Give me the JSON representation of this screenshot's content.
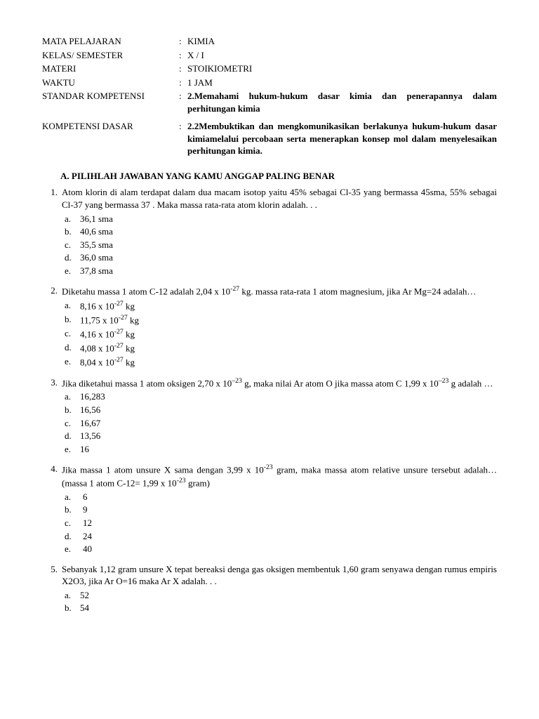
{
  "header": [
    {
      "label": "MATA PELAJARAN",
      "value": "KIMIA",
      "bold": false
    },
    {
      "label": "KELAS/ SEMESTER",
      "value": "X / I",
      "bold": false
    },
    {
      "label": "MATERI",
      "value": "STOIKIOMETRI",
      "bold": false
    },
    {
      "label": "WAKTU",
      "value": "1 JAM",
      "bold": false
    },
    {
      "label": "STANDAR KOMPETENSI",
      "value": "2.Memahami hukum-hukum dasar kimia dan penerapannya dalam perhitungan kimia",
      "bold": true
    },
    {
      "label": "KOMPETENSI DASAR",
      "value": "2.2Membuktikan dan mengkomunikasikan berlakunya hukum-hukum dasar kimiamelalui percobaan serta menerapkan konsep mol dalam menyelesaikan perhitungan kimia.",
      "bold": true
    }
  ],
  "section_title": "A.  PILIHLAH JAWABAN YANG KAMU ANGGAP PALING BENAR",
  "questions": [
    {
      "num": "1.",
      "text": "Atom klorin di alam terdapat dalam dua  macam isotop yaitu 45% sebagai Cl-35 yang bermassa 45sma, 55% sebagai Cl-37 yang bermassa 37 . Maka massa rata-rata atom klorin adalah. . .",
      "opts": [
        {
          "l": "a.",
          "t": "36,1 sma"
        },
        {
          "l": "b.",
          "t": "40,6 sma"
        },
        {
          "l": "c.",
          "t": "35,5 sma"
        },
        {
          "l": "d.",
          "t": "36,0 sma"
        },
        {
          "l": "e.",
          "t": "37,8 sma"
        }
      ]
    },
    {
      "num": "2.",
      "text": "Diketahu massa 1 atom C-12 adalah 2,04 x 10<sup>-27</sup> kg. massa rata-rata 1 atom magnesium, jika Ar Mg=24 adalah…",
      "opts": [
        {
          "l": "a.",
          "t": "8,16 x 10<sup>-27</sup> kg"
        },
        {
          "l": "b.",
          "t": "11,75 x 10<sup>-27</sup> kg"
        },
        {
          "l": "c.",
          "t": "4,16 x 10<sup>-27</sup> kg"
        },
        {
          "l": "d.",
          "t": "4,08 x 10<sup>-27</sup> kg"
        },
        {
          "l": "e.",
          "t": "8,04 x 10<sup>-27</sup> kg"
        }
      ]
    },
    {
      "num": "3.",
      "text": "Jika diketahui massa 1 atom oksigen 2,70 x 10<sup>–23</sup> g, maka nilai Ar atom O jika massa atom C 1,99 x 10<sup>–23</sup> g adalah …",
      "opts": [
        {
          "l": "a.",
          "t": "16,283"
        },
        {
          "l": "b.",
          "t": "16,56"
        },
        {
          "l": "c.",
          "t": "16,67"
        },
        {
          "l": "d.",
          "t": "13,56"
        },
        {
          "l": "e.",
          "t": "16"
        }
      ]
    },
    {
      "num": "4.",
      "text": "Jika massa 1 atom unsure X sama dengan 3,99 x 10<sup>-23</sup> gram, maka massa atom relative unsure tersebut adalah… (massa 1 atom C-12= 1,99 x 10<sup>-23</sup> gram)",
      "wide": true,
      "opts": [
        {
          "l": "a.",
          "t": "6"
        },
        {
          "l": "b.",
          "t": "9"
        },
        {
          "l": "c.",
          "t": "12"
        },
        {
          "l": "d.",
          "t": "24"
        },
        {
          "l": "e.",
          "t": "40"
        }
      ]
    },
    {
      "num": "5.",
      "text": "Sebanyak 1,12 gram unsure X tepat bereaksi denga gas oksigen membentuk 1,60 gram senyawa dengan rumus empiris X2O3, jika Ar O=16 maka Ar X adalah. . .",
      "opts": [
        {
          "l": "a.",
          "t": "52"
        },
        {
          "l": "b.",
          "t": "54"
        }
      ]
    }
  ]
}
